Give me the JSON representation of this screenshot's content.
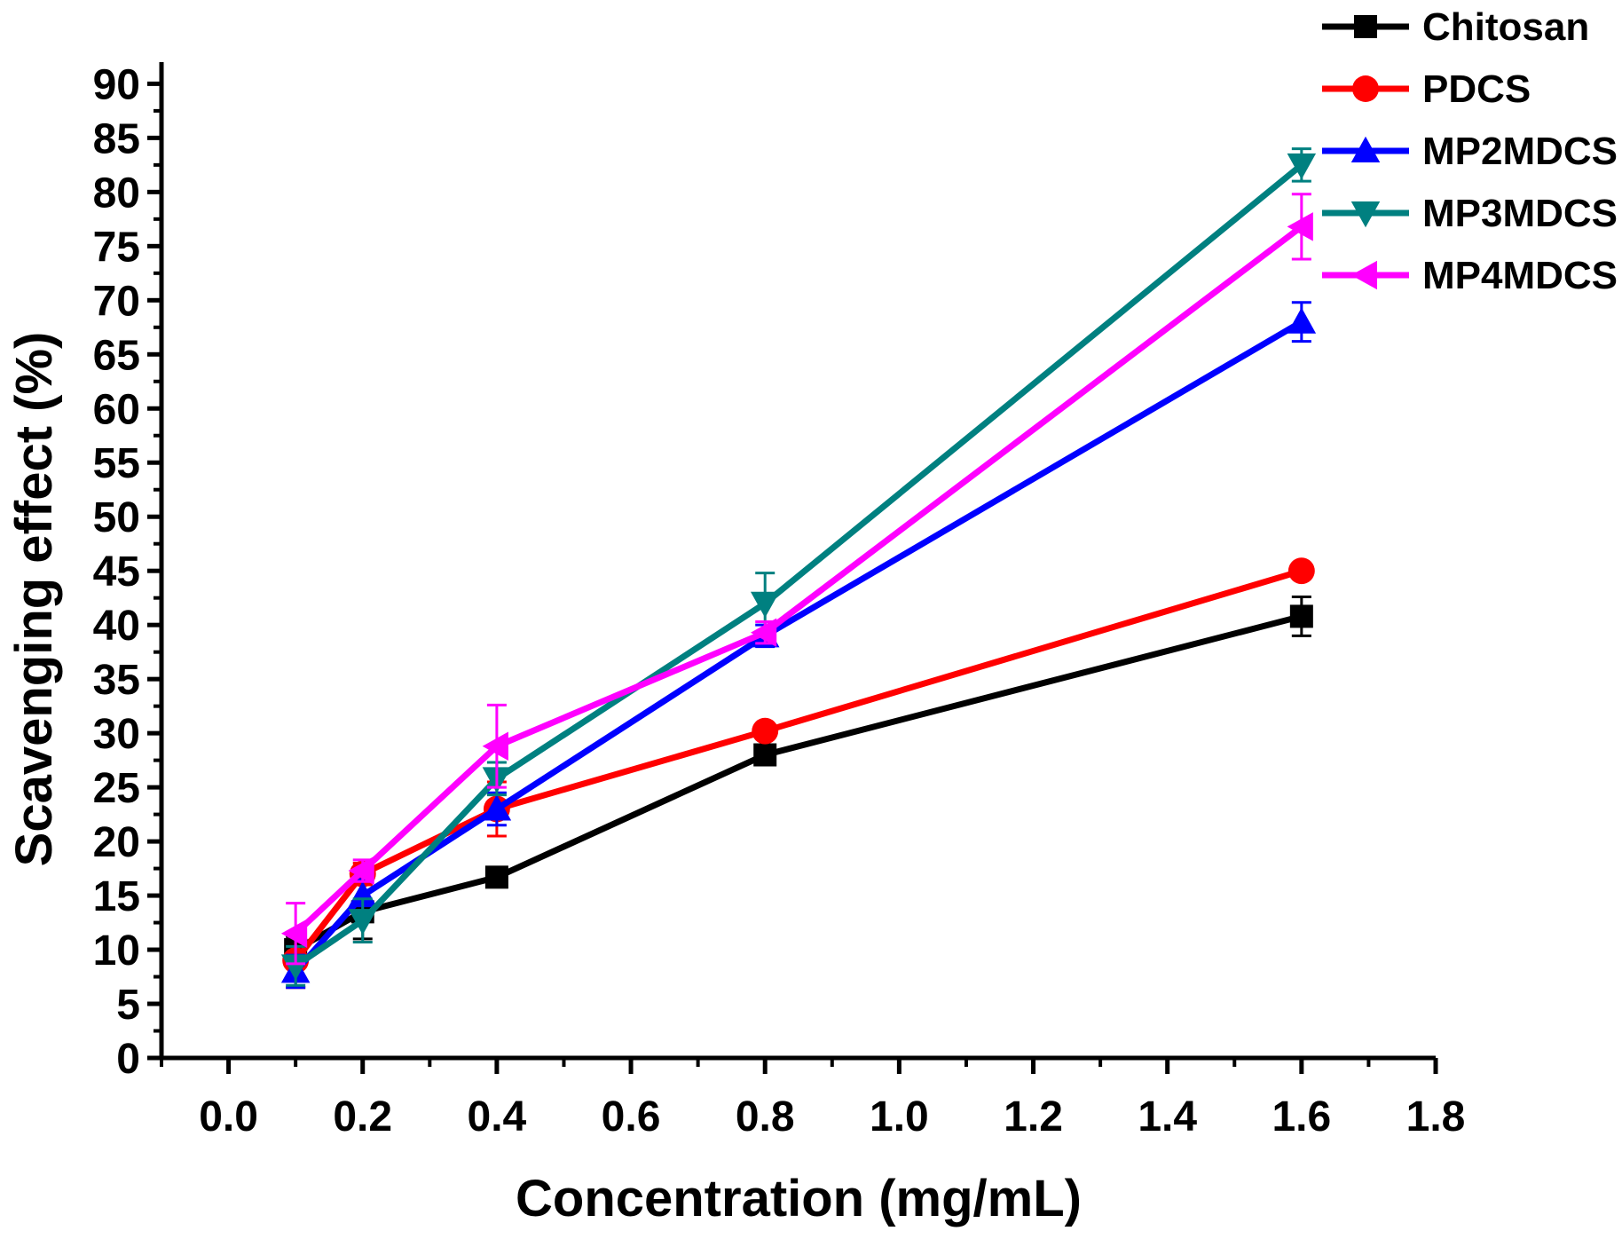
{
  "chart_data": {
    "type": "line",
    "xlabel": "Concentration (mg/mL)",
    "ylabel": "Scavenging effect (%)",
    "xlim": [
      -0.1,
      1.8
    ],
    "ylim": [
      0,
      92
    ],
    "xticks": [
      0.0,
      0.2,
      0.4,
      0.6,
      0.8,
      1.0,
      1.2,
      1.4,
      1.6,
      1.8
    ],
    "xtick_labels": [
      "0.0",
      "0.2",
      "0.4",
      "0.6",
      "0.8",
      "1.0",
      "1.2",
      "1.4",
      "1.6",
      "1.8"
    ],
    "yticks": [
      0,
      5,
      10,
      15,
      20,
      25,
      30,
      35,
      40,
      45,
      50,
      55,
      60,
      65,
      70,
      75,
      80,
      85,
      90
    ],
    "ytick_labels": [
      "0",
      "5",
      "10",
      "15",
      "20",
      "25",
      "30",
      "35",
      "40",
      "45",
      "50",
      "55",
      "60",
      "65",
      "70",
      "75",
      "80",
      "85",
      "90"
    ],
    "legend_position": "top-right",
    "x": [
      0.1,
      0.2,
      0.4,
      0.8,
      1.6
    ],
    "series": [
      {
        "name": "Chitosan",
        "color": "#000000",
        "marker": "square",
        "values": [
          10.0,
          13.5,
          16.7,
          28.0,
          40.8
        ],
        "errors": [
          1.2,
          2.5,
          0.5,
          0.5,
          1.8
        ]
      },
      {
        "name": "PDCS",
        "color": "#ff0000",
        "marker": "circle",
        "values": [
          9.0,
          17.0,
          23.0,
          30.2,
          45.0
        ],
        "errors": [
          2.5,
          1.0,
          2.5,
          0.5,
          0.5
        ]
      },
      {
        "name": "MP2MDCS",
        "color": "#0000ff",
        "marker": "triangle-up",
        "values": [
          8.0,
          15.0,
          23.0,
          39.0,
          68.0
        ],
        "errors": [
          1.5,
          1.5,
          1.5,
          1.0,
          1.8
        ]
      },
      {
        "name": "MP3MDCS",
        "color": "#008080",
        "marker": "triangle-down",
        "values": [
          8.5,
          12.7,
          25.8,
          42.0,
          82.5
        ],
        "errors": [
          1.8,
          2.0,
          1.5,
          2.8,
          1.5
        ]
      },
      {
        "name": "MP4MDCS",
        "color": "#ff00ff",
        "marker": "triangle-left",
        "values": [
          11.5,
          17.3,
          28.8,
          39.3,
          76.8
        ],
        "errors": [
          2.8,
          1.0,
          3.8,
          1.0,
          3.0
        ]
      }
    ]
  }
}
